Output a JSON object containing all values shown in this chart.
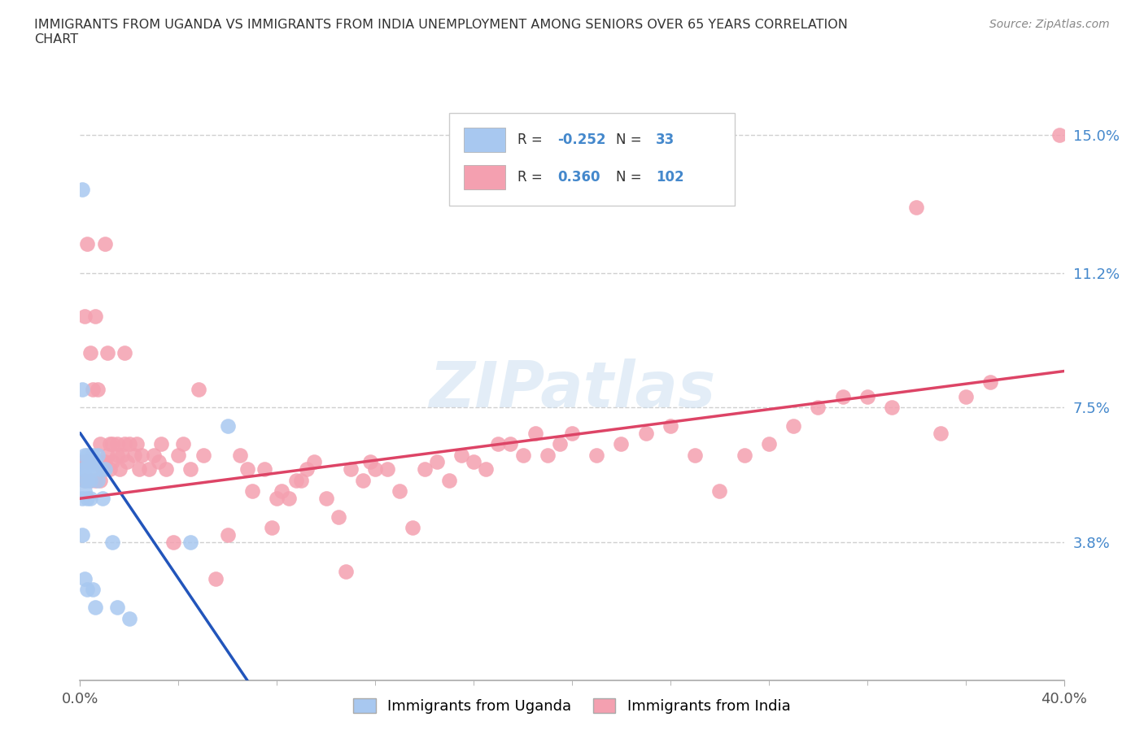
{
  "title": "IMMIGRANTS FROM UGANDA VS IMMIGRANTS FROM INDIA UNEMPLOYMENT AMONG SENIORS OVER 65 YEARS CORRELATION\nCHART",
  "source": "Source: ZipAtlas.com",
  "uganda_R": -0.252,
  "uganda_N": 33,
  "india_R": 0.36,
  "india_N": 102,
  "uganda_color": "#a8c8f0",
  "india_color": "#f4a0b0",
  "uganda_line_color": "#2255bb",
  "india_line_color": "#dd4466",
  "legend_label_uganda": "Immigrants from Uganda",
  "legend_label_india": "Immigrants from India",
  "xlim": [
    0.0,
    0.4
  ],
  "ylim": [
    0.0,
    0.16
  ],
  "yticks": [
    0.038,
    0.075,
    0.112,
    0.15
  ],
  "ytick_labels": [
    "3.8%",
    "7.5%",
    "11.2%",
    "15.0%"
  ],
  "xticks": [
    0.0,
    0.4
  ],
  "xtick_labels": [
    "0.0%",
    "40.0%"
  ],
  "uganda_x": [
    0.001,
    0.001,
    0.001,
    0.001,
    0.001,
    0.002,
    0.002,
    0.002,
    0.002,
    0.002,
    0.003,
    0.003,
    0.003,
    0.003,
    0.003,
    0.004,
    0.004,
    0.004,
    0.005,
    0.005,
    0.005,
    0.006,
    0.006,
    0.007,
    0.007,
    0.008,
    0.009,
    0.01,
    0.013,
    0.015,
    0.02,
    0.045,
    0.06
  ],
  "uganda_y": [
    0.135,
    0.08,
    0.058,
    0.05,
    0.04,
    0.062,
    0.058,
    0.055,
    0.052,
    0.028,
    0.062,
    0.058,
    0.055,
    0.05,
    0.025,
    0.06,
    0.055,
    0.05,
    0.062,
    0.058,
    0.025,
    0.06,
    0.02,
    0.062,
    0.055,
    0.058,
    0.05,
    0.058,
    0.038,
    0.02,
    0.017,
    0.038,
    0.07
  ],
  "india_x": [
    0.001,
    0.002,
    0.002,
    0.003,
    0.003,
    0.004,
    0.004,
    0.005,
    0.005,
    0.006,
    0.006,
    0.007,
    0.007,
    0.008,
    0.008,
    0.009,
    0.01,
    0.01,
    0.011,
    0.011,
    0.012,
    0.012,
    0.013,
    0.013,
    0.015,
    0.015,
    0.016,
    0.017,
    0.018,
    0.018,
    0.019,
    0.02,
    0.022,
    0.023,
    0.024,
    0.025,
    0.028,
    0.03,
    0.032,
    0.033,
    0.035,
    0.038,
    0.04,
    0.042,
    0.045,
    0.048,
    0.05,
    0.055,
    0.06,
    0.065,
    0.068,
    0.07,
    0.075,
    0.078,
    0.08,
    0.082,
    0.085,
    0.088,
    0.09,
    0.092,
    0.095,
    0.1,
    0.105,
    0.108,
    0.11,
    0.115,
    0.118,
    0.12,
    0.125,
    0.13,
    0.135,
    0.14,
    0.145,
    0.15,
    0.155,
    0.16,
    0.165,
    0.17,
    0.175,
    0.18,
    0.185,
    0.19,
    0.195,
    0.2,
    0.21,
    0.22,
    0.23,
    0.24,
    0.25,
    0.26,
    0.27,
    0.28,
    0.29,
    0.3,
    0.31,
    0.32,
    0.33,
    0.34,
    0.35,
    0.36,
    0.37,
    0.398
  ],
  "india_y": [
    0.06,
    0.055,
    0.1,
    0.06,
    0.12,
    0.055,
    0.09,
    0.06,
    0.08,
    0.055,
    0.1,
    0.06,
    0.08,
    0.055,
    0.065,
    0.058,
    0.06,
    0.12,
    0.062,
    0.09,
    0.058,
    0.065,
    0.06,
    0.065,
    0.062,
    0.065,
    0.058,
    0.062,
    0.065,
    0.09,
    0.06,
    0.065,
    0.062,
    0.065,
    0.058,
    0.062,
    0.058,
    0.062,
    0.06,
    0.065,
    0.058,
    0.038,
    0.062,
    0.065,
    0.058,
    0.08,
    0.062,
    0.028,
    0.04,
    0.062,
    0.058,
    0.052,
    0.058,
    0.042,
    0.05,
    0.052,
    0.05,
    0.055,
    0.055,
    0.058,
    0.06,
    0.05,
    0.045,
    0.03,
    0.058,
    0.055,
    0.06,
    0.058,
    0.058,
    0.052,
    0.042,
    0.058,
    0.06,
    0.055,
    0.062,
    0.06,
    0.058,
    0.065,
    0.065,
    0.062,
    0.068,
    0.062,
    0.065,
    0.068,
    0.062,
    0.065,
    0.068,
    0.07,
    0.062,
    0.052,
    0.062,
    0.065,
    0.07,
    0.075,
    0.078,
    0.078,
    0.075,
    0.13,
    0.068,
    0.078,
    0.082,
    0.15
  ],
  "uganda_trendline_x": [
    0.0,
    0.07
  ],
  "uganda_trendline_y": [
    0.068,
    0.0
  ],
  "india_trendline_x": [
    0.0,
    0.4
  ],
  "india_trendline_y": [
    0.05,
    0.085
  ]
}
